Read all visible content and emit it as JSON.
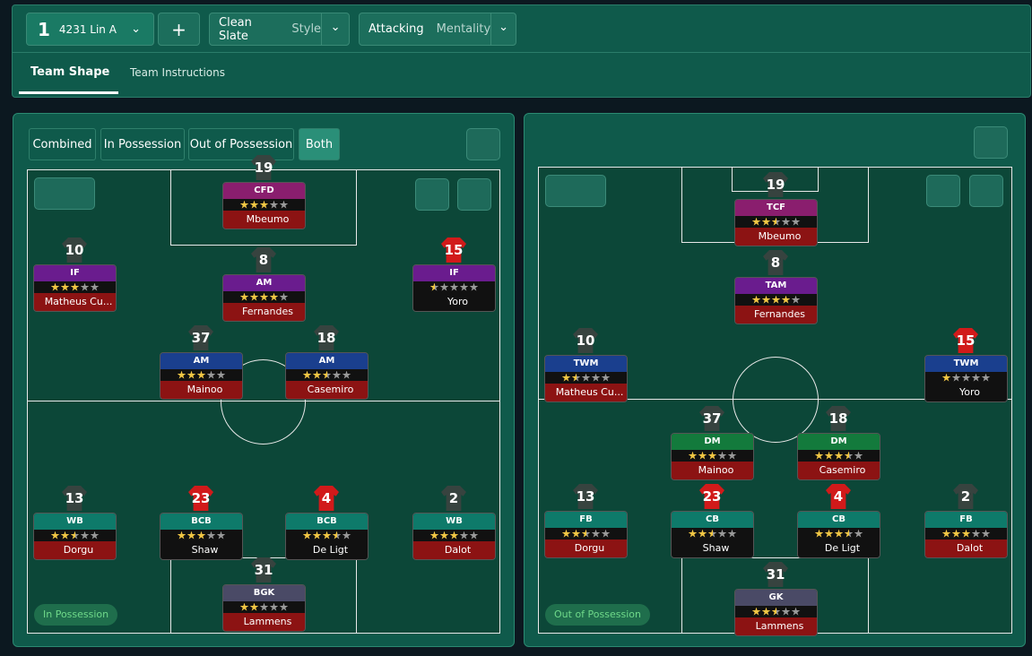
{
  "toolbar": {
    "slot": "1",
    "formation": "4231 Lin A",
    "add": "+",
    "style": {
      "value": "Clean Slate",
      "label": "Style"
    },
    "mentality": {
      "value": "Attacking",
      "label": "Mentality"
    }
  },
  "tabs": [
    "Team Shape",
    "Team Instructions"
  ],
  "rating_max": 5,
  "panels": [
    {
      "view_tabs": [
        "Combined",
        "In Possession",
        "Out of Possession",
        "Both"
      ],
      "phase": "In Possession",
      "players": [
        {
          "number": 19,
          "role": "CFD",
          "rating": 3,
          "name": "Mbeumo",
          "role_color": "#8a1e6e",
          "name_color": "#8c1313",
          "kit": "#37433f"
        },
        {
          "number": 10,
          "role": "IF",
          "rating": 3,
          "name": "Matheus Cu...",
          "role_color": "#6a1c8e",
          "name_color": "#8c1313",
          "kit": "#37433f"
        },
        {
          "number": 8,
          "role": "AM",
          "rating": 4,
          "name": "Fernandes",
          "role_color": "#6a1c8e",
          "name_color": "#8c1313",
          "kit": "#37433f"
        },
        {
          "number": 15,
          "role": "IF",
          "rating": 0.5,
          "name": "Yoro",
          "role_color": "#6a1c8e",
          "name_color": "#111111",
          "kit": "#d11a1a"
        },
        {
          "number": 37,
          "role": "AM",
          "rating": 3,
          "name": "Mainoo",
          "role_color": "#1a3f8e",
          "name_color": "#8c1313",
          "kit": "#37433f"
        },
        {
          "number": 18,
          "role": "AM",
          "rating": 2.5,
          "name": "Casemiro",
          "role_color": "#1a3f8e",
          "name_color": "#8c1313",
          "kit": "#37433f"
        },
        {
          "number": 13,
          "role": "WB",
          "rating": 2.5,
          "name": "Dorgu",
          "role_color": "#0e7a6a",
          "name_color": "#8c1313",
          "kit": "#37433f"
        },
        {
          "number": 23,
          "role": "BCB",
          "rating": 3,
          "name": "Shaw",
          "role_color": "#0e7a6a",
          "name_color": "#111111",
          "kit": "#d11a1a"
        },
        {
          "number": 4,
          "role": "BCB",
          "rating": 3.5,
          "name": "De Ligt",
          "role_color": "#0e7a6a",
          "name_color": "#111111",
          "kit": "#d11a1a"
        },
        {
          "number": 2,
          "role": "WB",
          "rating": 3,
          "name": "Dalot",
          "role_color": "#0e7a6a",
          "name_color": "#8c1313",
          "kit": "#37433f"
        },
        {
          "number": 31,
          "role": "BGK",
          "rating": 2,
          "name": "Lammens",
          "role_color": "#4a4a66",
          "name_color": "#8c1313",
          "kit": "#37433f"
        }
      ]
    },
    {
      "phase": "Out of Possession",
      "players": [
        {
          "number": 19,
          "role": "TCF",
          "rating": 2.5,
          "name": "Mbeumo",
          "role_color": "#8a1e6e",
          "name_color": "#8c1313",
          "kit": "#37433f"
        },
        {
          "number": 8,
          "role": "TAM",
          "rating": 4,
          "name": "Fernandes",
          "role_color": "#6a1c8e",
          "name_color": "#8c1313",
          "kit": "#37433f"
        },
        {
          "number": 10,
          "role": "TWM",
          "rating": 1.5,
          "name": "Matheus Cu...",
          "role_color": "#1a3f8e",
          "name_color": "#8c1313",
          "kit": "#37433f"
        },
        {
          "number": 15,
          "role": "TWM",
          "rating": 1,
          "name": "Yoro",
          "role_color": "#1a3f8e",
          "name_color": "#111111",
          "kit": "#d11a1a"
        },
        {
          "number": 37,
          "role": "DM",
          "rating": 3,
          "name": "Mainoo",
          "role_color": "#137a3c",
          "name_color": "#8c1313",
          "kit": "#37433f"
        },
        {
          "number": 18,
          "role": "DM",
          "rating": 3.5,
          "name": "Casemiro",
          "role_color": "#137a3c",
          "name_color": "#8c1313",
          "kit": "#37433f"
        },
        {
          "number": 13,
          "role": "FB",
          "rating": 2.5,
          "name": "Dorgu",
          "role_color": "#0e7a6a",
          "name_color": "#8c1313",
          "kit": "#37433f"
        },
        {
          "number": 23,
          "role": "CB",
          "rating": 2.5,
          "name": "Shaw",
          "role_color": "#0e7a6a",
          "name_color": "#111111",
          "kit": "#d11a1a"
        },
        {
          "number": 4,
          "role": "CB",
          "rating": 3.5,
          "name": "De Ligt",
          "role_color": "#0e7a6a",
          "name_color": "#111111",
          "kit": "#d11a1a"
        },
        {
          "number": 2,
          "role": "FB",
          "rating": 3,
          "name": "Dalot",
          "role_color": "#0e7a6a",
          "name_color": "#8c1313",
          "kit": "#37433f"
        },
        {
          "number": 31,
          "role": "GK",
          "rating": 2.5,
          "name": "Lammens",
          "role_color": "#4a4a66",
          "name_color": "#8c1313",
          "kit": "#37433f"
        }
      ]
    }
  ]
}
